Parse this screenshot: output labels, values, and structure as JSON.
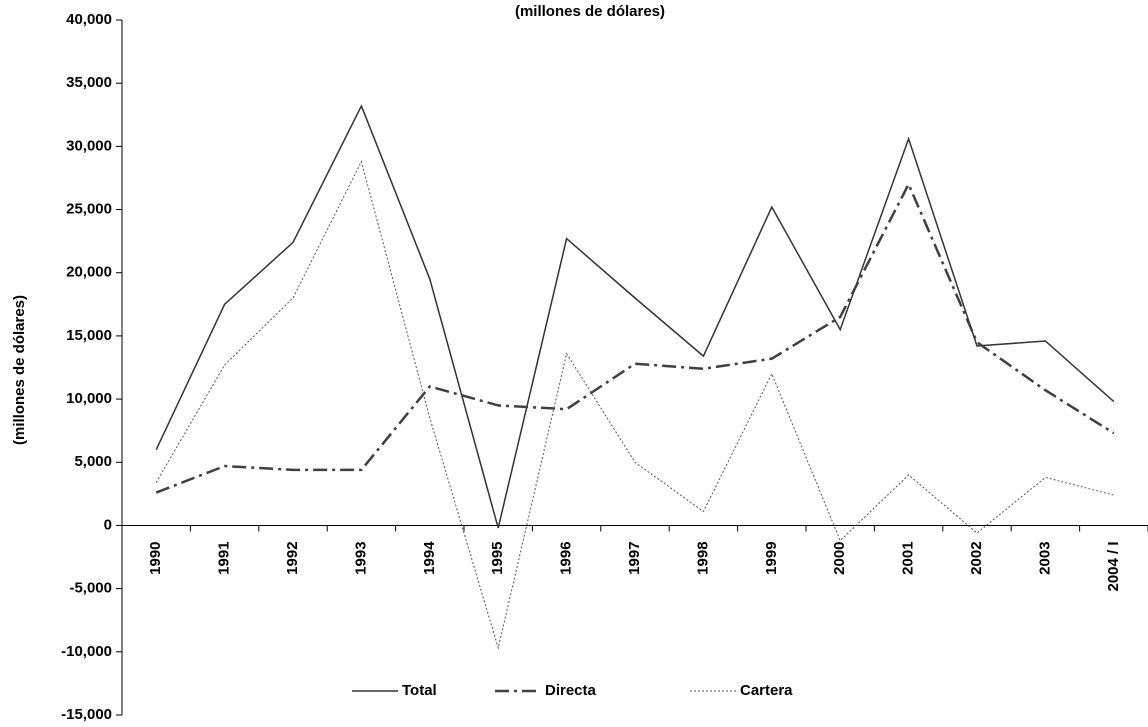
{
  "chart_data": {
    "type": "line",
    "title": "(millones de dólares)",
    "y_label": "(millones de dólares)",
    "categories": [
      "1990",
      "1991",
      "1992",
      "1993",
      "1994",
      "1995",
      "1996",
      "1997",
      "1998",
      "1999",
      "2000",
      "2001",
      "2002",
      "2003",
      "2004 / I"
    ],
    "series": [
      {
        "name": "Total",
        "color": "#333333",
        "values": [
          6000,
          17500,
          22400,
          33200,
          19500,
          -200,
          22700,
          18000,
          13400,
          25200,
          15500,
          30600,
          14200,
          14600,
          9800
        ]
      },
      {
        "name": "Directa",
        "color": "#404040",
        "values": [
          2600,
          4700,
          4400,
          4400,
          11000,
          9500,
          9200,
          12800,
          12400,
          13200,
          16500,
          27000,
          14500,
          10700,
          7300
        ]
      },
      {
        "name": "Cartera",
        "color": "#555555",
        "values": [
          3400,
          12700,
          18000,
          28800,
          8500,
          -9700,
          13600,
          5000,
          1100,
          12000,
          -1200,
          4000,
          -600,
          3800,
          2400
        ]
      }
    ],
    "ylim": [
      -15000,
      40000
    ],
    "yticks": [
      {
        "value": -15000,
        "label": "-15,000"
      },
      {
        "value": -10000,
        "label": "-10,000"
      },
      {
        "value": -5000,
        "label": "-5,000"
      },
      0,
      {
        "value": 5000,
        "label": "5,000"
      },
      {
        "value": 10000,
        "label": "10,000"
      },
      {
        "value": 15000,
        "label": "15,000"
      },
      {
        "value": 20000,
        "label": "20,000"
      },
      {
        "value": 25000,
        "label": "25,000"
      },
      {
        "value": 30000,
        "label": "30,000"
      },
      {
        "value": 35000,
        "label": "35,000"
      },
      {
        "value": 40000,
        "label": "40,000"
      }
    ],
    "legend": "bottom"
  }
}
